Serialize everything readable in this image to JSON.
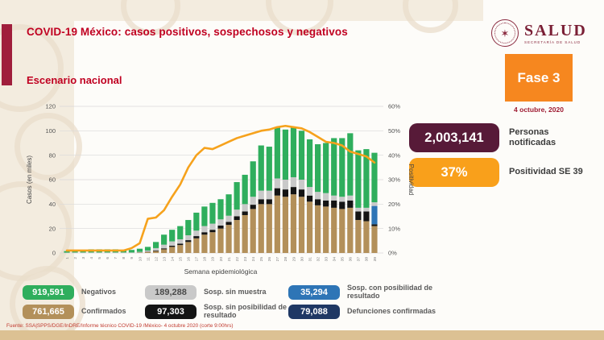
{
  "page": {
    "title": "COVID-19 México: casos positivos, sospechosos y negativos",
    "subtitle": "Escenario nacional",
    "footer": "Fuente: SSA|SPPS/DGE/InDRE/Informe técnico COVID-19 /México- 4 octubre 2020 (corte 9:00hrs)"
  },
  "logo": {
    "name": "SALUD",
    "sub": "SECRETARÍA DE SALUD"
  },
  "phase": {
    "label": "Fase 3",
    "date": "4 octubre, 2020",
    "color": "#f6871f"
  },
  "stats": [
    {
      "value": "2,003,141",
      "label": "Personas notificadas",
      "color": "#571a38",
      "text_color": "#ffffff"
    },
    {
      "value": "37%",
      "label": "Positividad SE 39",
      "color": "#f9a01b",
      "text_color": "#ffffff"
    }
  ],
  "legend": [
    {
      "value": "919,591",
      "label": "Negativos",
      "color": "#2fae5d",
      "text_color": "#ffffff"
    },
    {
      "value": "761,665",
      "label": "Confirmados",
      "color": "#b3905a",
      "text_color": "#ffffff"
    },
    {
      "value": "189,288",
      "label": "Sosp. sin muestra",
      "color": "#c9c9c9",
      "text_color": "#4a4a4a"
    },
    {
      "value": "97,303",
      "label": "Sosp. sin posibilidad de resultado",
      "color": "#141414",
      "text_color": "#ffffff"
    },
    {
      "value": "35,294",
      "label": "Sosp. con posibilidad de resultado",
      "color": "#2e75b6",
      "text_color": "#ffffff"
    },
    {
      "value": "79,088",
      "label": "Defunciones confirmadas",
      "color": "#1f3864",
      "text_color": "#ffffff"
    }
  ],
  "chart_data": {
    "type": "bar",
    "subtype": "stacked-bars-with-line",
    "title": "",
    "xlabel": "Semana epidemiológica",
    "ylabel_left": "Casos (en miles)",
    "ylabel_right": "Positividad",
    "ylim_left": [
      0,
      120
    ],
    "ylim_right_pct": [
      0,
      60
    ],
    "yticks_left": [
      0,
      20,
      40,
      60,
      80,
      100,
      120
    ],
    "yticks_right": [
      "0%",
      "10%",
      "20%",
      "30%",
      "40%",
      "50%",
      "60%"
    ],
    "grid": true,
    "categories": [
      1,
      2,
      3,
      4,
      5,
      6,
      7,
      8,
      9,
      10,
      11,
      12,
      13,
      14,
      15,
      16,
      17,
      18,
      19,
      20,
      21,
      22,
      23,
      24,
      25,
      26,
      27,
      28,
      29,
      30,
      31,
      32,
      33,
      34,
      35,
      36,
      37,
      38,
      39
    ],
    "series": [
      {
        "name": "Confirmados",
        "color": "#b3905a",
        "values": [
          0.1,
          0.1,
          0.1,
          0.1,
          0.1,
          0.1,
          0.1,
          0.1,
          0.1,
          0.3,
          0.8,
          1.5,
          3,
          5,
          6.5,
          9,
          12,
          15,
          17,
          20,
          23,
          27,
          31,
          36,
          40,
          40,
          47,
          46,
          48,
          46,
          42,
          39,
          38,
          37,
          36,
          37,
          27,
          26,
          22
        ]
      },
      {
        "name": "Sosp. sin posibilidad de resultado",
        "color": "#141414",
        "values": [
          0,
          0,
          0,
          0,
          0,
          0,
          0,
          0,
          0,
          0.1,
          0.2,
          0.5,
          0.8,
          1,
          1.2,
          1.5,
          1.8,
          2,
          2,
          2.5,
          2.5,
          3,
          3,
          3.5,
          4,
          4,
          6,
          6,
          6,
          6,
          5,
          5,
          5,
          6,
          6,
          6,
          7,
          8,
          1.5
        ]
      },
      {
        "name": "Sosp. con posibilidad de resultado",
        "color": "#2e75b6",
        "values": [
          0,
          0,
          0,
          0,
          0,
          0,
          0,
          0,
          0,
          0,
          0,
          0,
          0,
          0,
          0,
          0,
          0,
          0,
          0,
          0,
          0,
          0,
          0,
          0,
          0,
          0,
          0,
          0,
          0,
          0,
          0,
          0,
          0,
          0,
          0,
          0,
          0,
          0,
          15
        ]
      },
      {
        "name": "Sosp. sin muestra",
        "color": "#c9c9c9",
        "values": [
          0.2,
          0.3,
          0.3,
          0.3,
          0.3,
          0.3,
          0.3,
          0.3,
          0.3,
          0.5,
          1,
          2,
          3,
          3.5,
          3.5,
          4,
          4.5,
          5,
          5,
          5,
          5,
          5.5,
          6,
          6.5,
          7,
          7,
          8,
          8,
          8,
          8,
          7,
          6,
          6,
          4,
          4,
          4,
          3,
          3,
          3
        ]
      },
      {
        "name": "Negativos",
        "color": "#2fae5d",
        "values": [
          1.2,
          2.1,
          2.1,
          2.6,
          2.6,
          2.6,
          2.6,
          2.1,
          2.1,
          2.6,
          3,
          5,
          8.2,
          9.5,
          10.8,
          12.5,
          14.7,
          16,
          17,
          16.5,
          17.5,
          22.5,
          24,
          29,
          37,
          36,
          42,
          41,
          41,
          40,
          39,
          39,
          41,
          47,
          48,
          51,
          47,
          48,
          40.5
        ]
      }
    ],
    "line": {
      "name": "Positividad (%)",
      "color": "#f6a21c",
      "values": [
        1,
        1,
        1,
        1,
        1,
        1,
        1,
        1,
        2,
        4,
        14,
        14.5,
        17.5,
        23,
        28,
        35,
        40,
        43,
        42.5,
        44,
        45.5,
        47,
        48,
        49,
        50,
        50.5,
        51.5,
        52,
        51.5,
        51,
        49.5,
        47.5,
        45.5,
        45,
        44,
        41.5,
        40.5,
        39.5,
        37
      ]
    }
  }
}
